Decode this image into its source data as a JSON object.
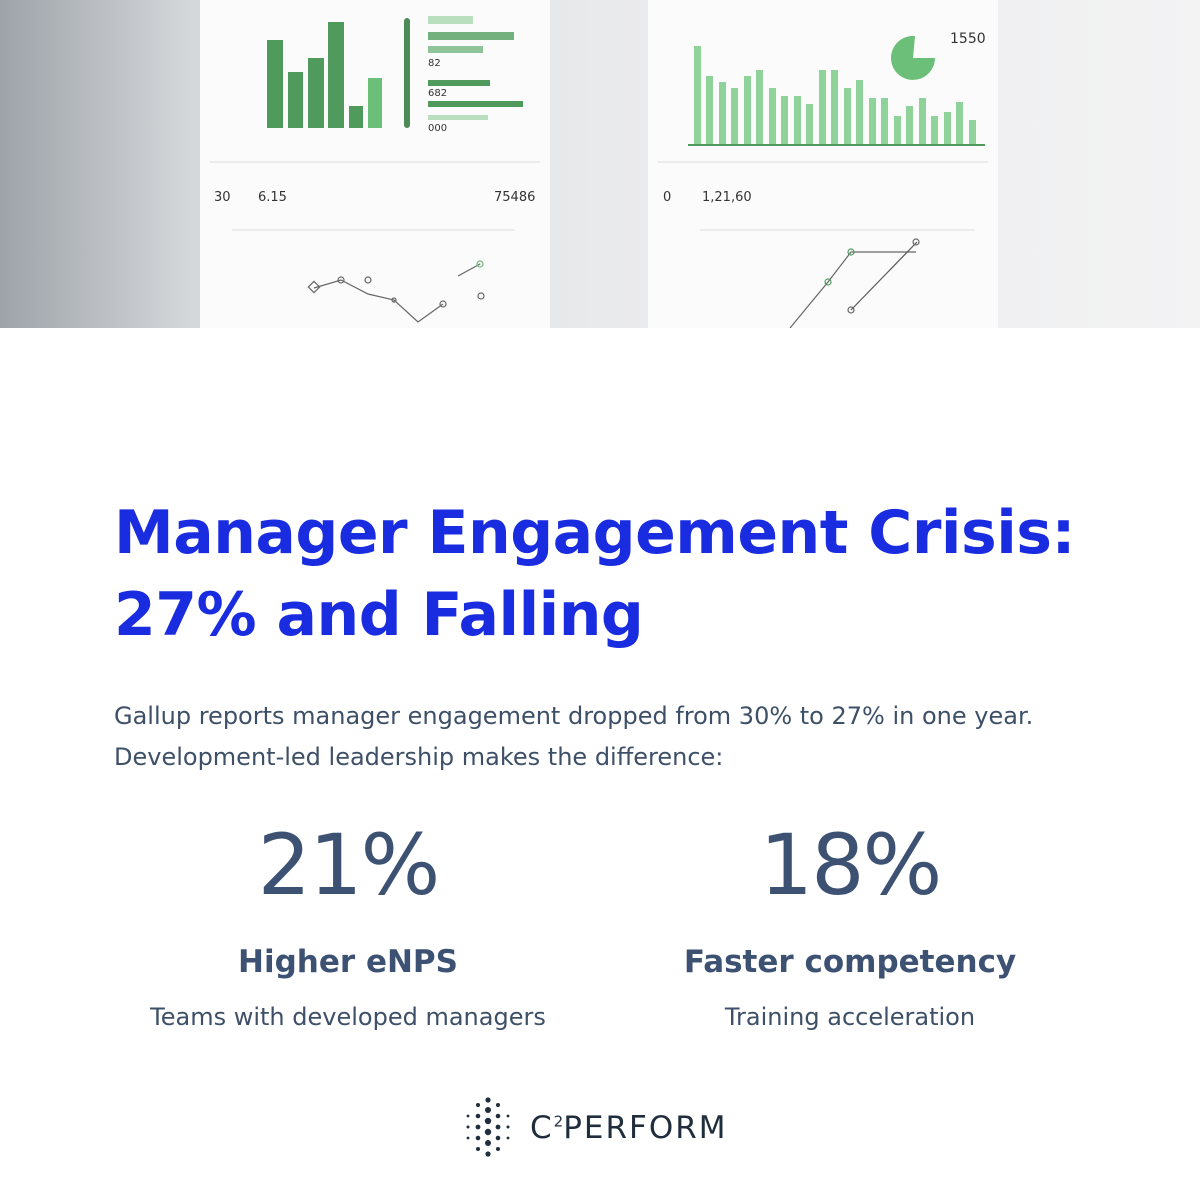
{
  "hero": {
    "texts": [
      "1550",
      "30",
      "6.15",
      "75486",
      "0",
      "1,21,60",
      "82",
      "682",
      "000"
    ]
  },
  "header": {
    "title_lines": [
      "Manager Engagement Crisis:",
      "27% and Falling"
    ]
  },
  "intro": {
    "lines": [
      "Gallup reports manager engagement dropped from 30% to 27% in one year.",
      "Development-led leadership makes the difference:"
    ]
  },
  "stats": [
    {
      "figure": "21%",
      "label": "Higher eNPS",
      "caption": "Teams with developed managers"
    },
    {
      "figure": "18%",
      "label": "Faster competency",
      "caption": "Training acceleration"
    }
  ],
  "brand": {
    "letter": "C",
    "superscript": "2",
    "name": "PERFORM"
  }
}
